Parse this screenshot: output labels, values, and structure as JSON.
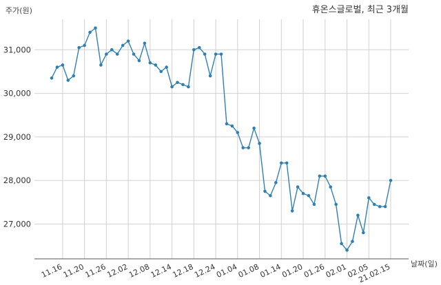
{
  "chart_data": {
    "type": "line",
    "title": "휴온스글로벌, 최근 3개월",
    "ylabel": "주가(원)",
    "xlabel": "날짜(일)",
    "ylim": [
      26200,
      31700
    ],
    "yticks": [
      27000,
      28000,
      29000,
      30000,
      31000
    ],
    "ytick_labels": [
      "27,000",
      "28,000",
      "29,000",
      "30,000",
      "31,000"
    ],
    "grid": true,
    "color": "#2e7fb3",
    "x_tick_labels": [
      {
        "label": "11.16",
        "index": 3
      },
      {
        "label": "11.20",
        "index": 7
      },
      {
        "label": "11.26",
        "index": 11
      },
      {
        "label": "12.02",
        "index": 15
      },
      {
        "label": "12.08",
        "index": 19
      },
      {
        "label": "12.14",
        "index": 23
      },
      {
        "label": "12.18",
        "index": 27
      },
      {
        "label": "12.24",
        "index": 31
      },
      {
        "label": "01.04",
        "index": 35
      },
      {
        "label": "01.08",
        "index": 39
      },
      {
        "label": "01.14",
        "index": 43
      },
      {
        "label": "01.20",
        "index": 47
      },
      {
        "label": "01.26",
        "index": 51
      },
      {
        "label": "02.01",
        "index": 55
      },
      {
        "label": "02.05",
        "index": 59
      },
      {
        "label": "21.02.15",
        "index": 63
      }
    ],
    "series": [
      {
        "values": [
          30350,
          30600,
          30650,
          30300,
          30400,
          31050,
          31100,
          31400,
          31500,
          30650,
          30900,
          31000,
          30900,
          31100,
          31200,
          30900,
          30750,
          31150,
          30700,
          30650,
          30500,
          30600,
          30150,
          30250,
          30200,
          30150,
          31000,
          31050,
          30900,
          30400,
          30900,
          30900,
          29300,
          29250,
          29100,
          28750,
          28750,
          29200,
          28850,
          27750,
          27650,
          27950,
          28400,
          28400,
          27300,
          27850,
          27700,
          27650,
          27450,
          28100,
          28100,
          27850,
          27450,
          26550,
          26400,
          26600,
          27200,
          26800,
          27600,
          27450,
          27400,
          27400,
          28000
        ]
      }
    ]
  }
}
